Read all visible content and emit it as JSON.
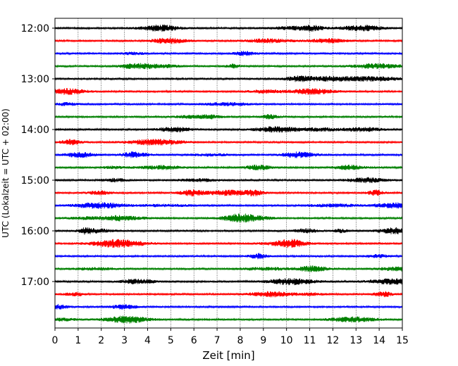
{
  "chart_data": {
    "type": "line",
    "title": "",
    "xlabel": "Zeit  [min]",
    "ylabel": "UTC (Lokalzeit = UTC + 02:00)",
    "xlim": [
      0,
      15
    ],
    "x_ticks": [
      "0",
      "1",
      "2",
      "3",
      "4",
      "5",
      "6",
      "7",
      "8",
      "9",
      "10",
      "11",
      "12",
      "13",
      "14",
      "15"
    ],
    "y_ticks": [
      "12:00",
      "13:00",
      "14:00",
      "15:00",
      "16:00",
      "17:00"
    ],
    "grid": "x-dotted",
    "legend": "none",
    "trace_interval_min": 15,
    "colors_cycle": [
      "#000000",
      "#ff0000",
      "#0000ff",
      "#008000"
    ],
    "traces": [
      {
        "start": "12:00",
        "color": "#000000"
      },
      {
        "start": "12:15",
        "color": "#ff0000"
      },
      {
        "start": "12:30",
        "color": "#0000ff"
      },
      {
        "start": "12:45",
        "color": "#008000"
      },
      {
        "start": "13:00",
        "color": "#000000"
      },
      {
        "start": "13:15",
        "color": "#ff0000"
      },
      {
        "start": "13:30",
        "color": "#0000ff"
      },
      {
        "start": "13:45",
        "color": "#008000"
      },
      {
        "start": "14:00",
        "color": "#000000"
      },
      {
        "start": "14:15",
        "color": "#ff0000"
      },
      {
        "start": "14:30",
        "color": "#0000ff"
      },
      {
        "start": "14:45",
        "color": "#008000"
      },
      {
        "start": "15:00",
        "color": "#000000"
      },
      {
        "start": "15:15",
        "color": "#ff0000"
      },
      {
        "start": "15:30",
        "color": "#0000ff"
      },
      {
        "start": "15:45",
        "color": "#008000"
      },
      {
        "start": "16:00",
        "color": "#000000"
      },
      {
        "start": "16:15",
        "color": "#ff0000"
      },
      {
        "start": "16:30",
        "color": "#0000ff"
      },
      {
        "start": "16:45",
        "color": "#008000"
      },
      {
        "start": "17:00",
        "color": "#000000"
      },
      {
        "start": "17:15",
        "color": "#ff0000"
      },
      {
        "start": "17:30",
        "color": "#0000ff"
      },
      {
        "start": "17:45",
        "color": "#008000"
      }
    ]
  }
}
